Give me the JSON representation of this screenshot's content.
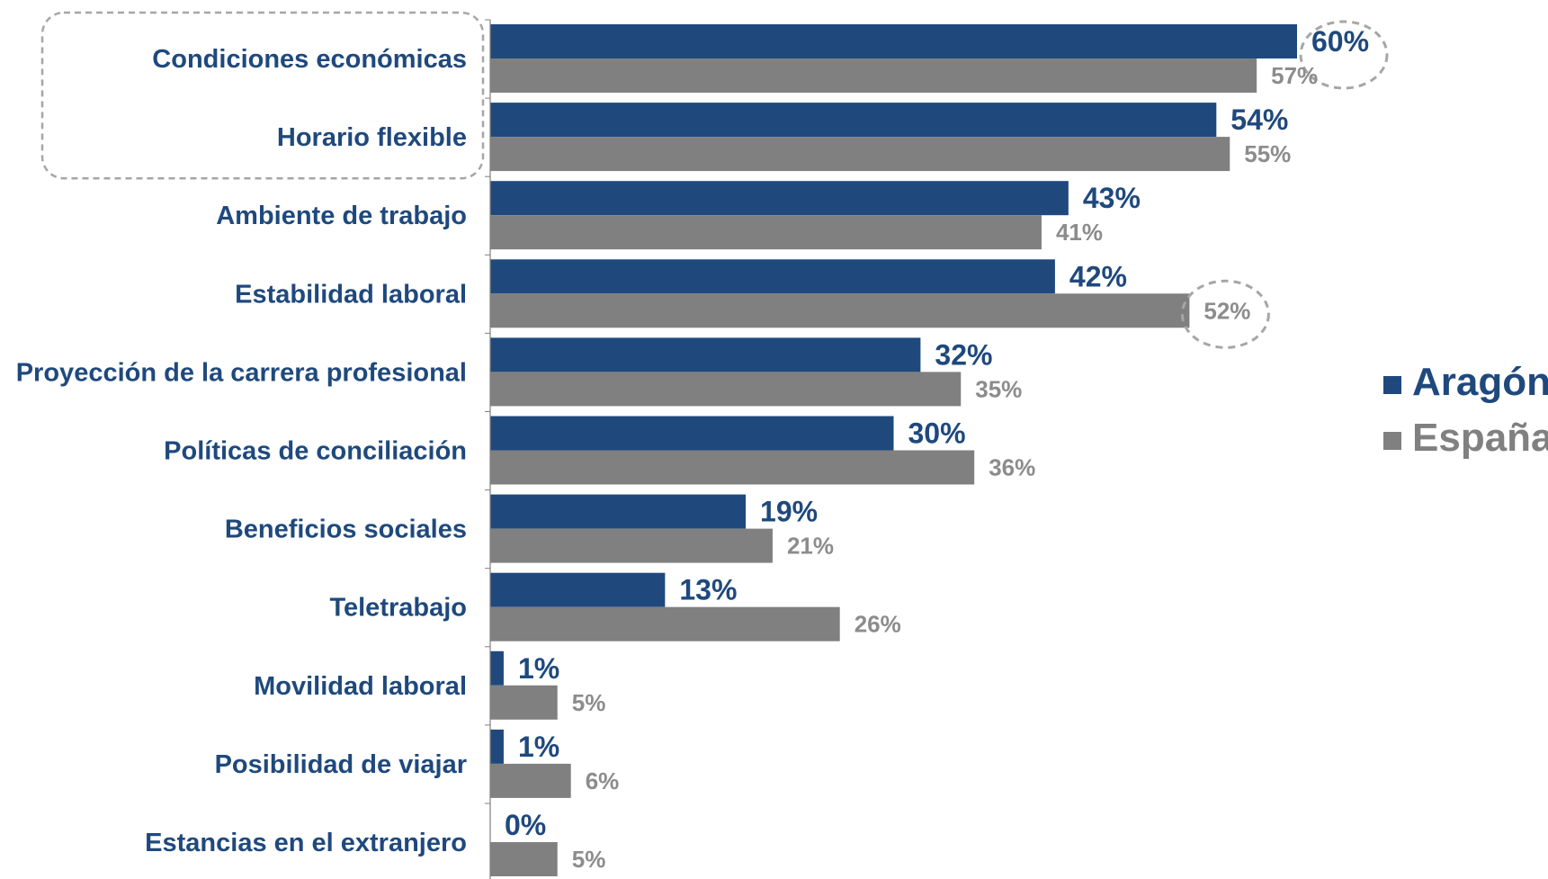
{
  "chart_data": {
    "type": "bar",
    "orientation": "horizontal",
    "categories": [
      "Condiciones económicas",
      "Horario flexible",
      "Ambiente de trabajo",
      "Estabilidad laboral",
      "Proyección de la carrera profesional",
      "Políticas de conciliación",
      "Beneficios sociales",
      "Teletrabajo",
      "Movilidad laboral",
      "Posibilidad de viajar",
      "Estancias en el extranjero"
    ],
    "series": [
      {
        "name": "Aragón",
        "color": "#1f497d",
        "values": [
          60,
          54,
          43,
          42,
          32,
          30,
          19,
          13,
          1,
          1,
          0
        ],
        "labels": [
          "60%",
          "54%",
          "43%",
          "42%",
          "32%",
          "30%",
          "19%",
          "13%",
          "1%",
          "1%",
          "0%"
        ]
      },
      {
        "name": "España",
        "color": "#808080",
        "values": [
          57,
          55,
          41,
          52,
          35,
          36,
          21,
          26,
          5,
          6,
          5
        ],
        "labels": [
          "57%",
          "55%",
          "41%",
          "52%",
          "35%",
          "36%",
          "21%",
          "26%",
          "5%",
          "6%",
          "5%"
        ]
      }
    ],
    "xlim": [
      0,
      65
    ],
    "grid": false,
    "legend_position": "right",
    "highlights": {
      "group_box_categories": [
        "Condiciones económicas",
        "Horario flexible"
      ],
      "circled_values": [
        "60%",
        "52%"
      ]
    }
  },
  "colors": {
    "category_text": "#1f497d",
    "highlight_outline": "#a6a6a6",
    "axis": "#7f7f7f"
  }
}
